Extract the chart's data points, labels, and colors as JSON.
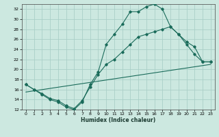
{
  "title": "",
  "xlabel": "Humidex (Indice chaleur)",
  "bg_color": "#cce8e0",
  "grid_color": "#aacfc8",
  "line_color": "#1a6b5a",
  "xlim": [
    -0.5,
    23.5
  ],
  "ylim": [
    12,
    33
  ],
  "xticks": [
    0,
    1,
    2,
    3,
    4,
    5,
    6,
    7,
    8,
    9,
    10,
    11,
    12,
    13,
    14,
    15,
    16,
    17,
    18,
    19,
    20,
    21,
    22,
    23
  ],
  "yticks": [
    12,
    14,
    16,
    18,
    20,
    22,
    24,
    26,
    28,
    30,
    32
  ],
  "line1_x": [
    0,
    1,
    2,
    3,
    4,
    5,
    6,
    7,
    8,
    9,
    10,
    11,
    12,
    13,
    14,
    15,
    16,
    17,
    18,
    19,
    20,
    21,
    22,
    23
  ],
  "line1_y": [
    17.0,
    16.0,
    15.0,
    14.0,
    13.5,
    12.5,
    12.0,
    13.5,
    17.0,
    19.5,
    25.0,
    27.0,
    29.0,
    31.5,
    31.5,
    32.5,
    33.0,
    32.0,
    28.5,
    27.0,
    25.0,
    23.0,
    21.5,
    21.5
  ],
  "line2_x": [
    0,
    1,
    2,
    3,
    4,
    5,
    6,
    7,
    8,
    9,
    10,
    11,
    12,
    13,
    14,
    15,
    16,
    17,
    18,
    19,
    20,
    21,
    22,
    23
  ],
  "line2_y": [
    17.0,
    16.0,
    15.2,
    14.2,
    13.8,
    12.8,
    12.2,
    13.8,
    16.5,
    19.0,
    21.0,
    22.0,
    23.5,
    25.0,
    26.5,
    27.0,
    27.5,
    28.0,
    28.5,
    27.0,
    25.5,
    24.5,
    21.5,
    21.5
  ],
  "line3_x": [
    0,
    23
  ],
  "line3_y": [
    15.5,
    21.0
  ],
  "xlabel_fontsize": 5.5,
  "tick_fontsize": 4.5
}
